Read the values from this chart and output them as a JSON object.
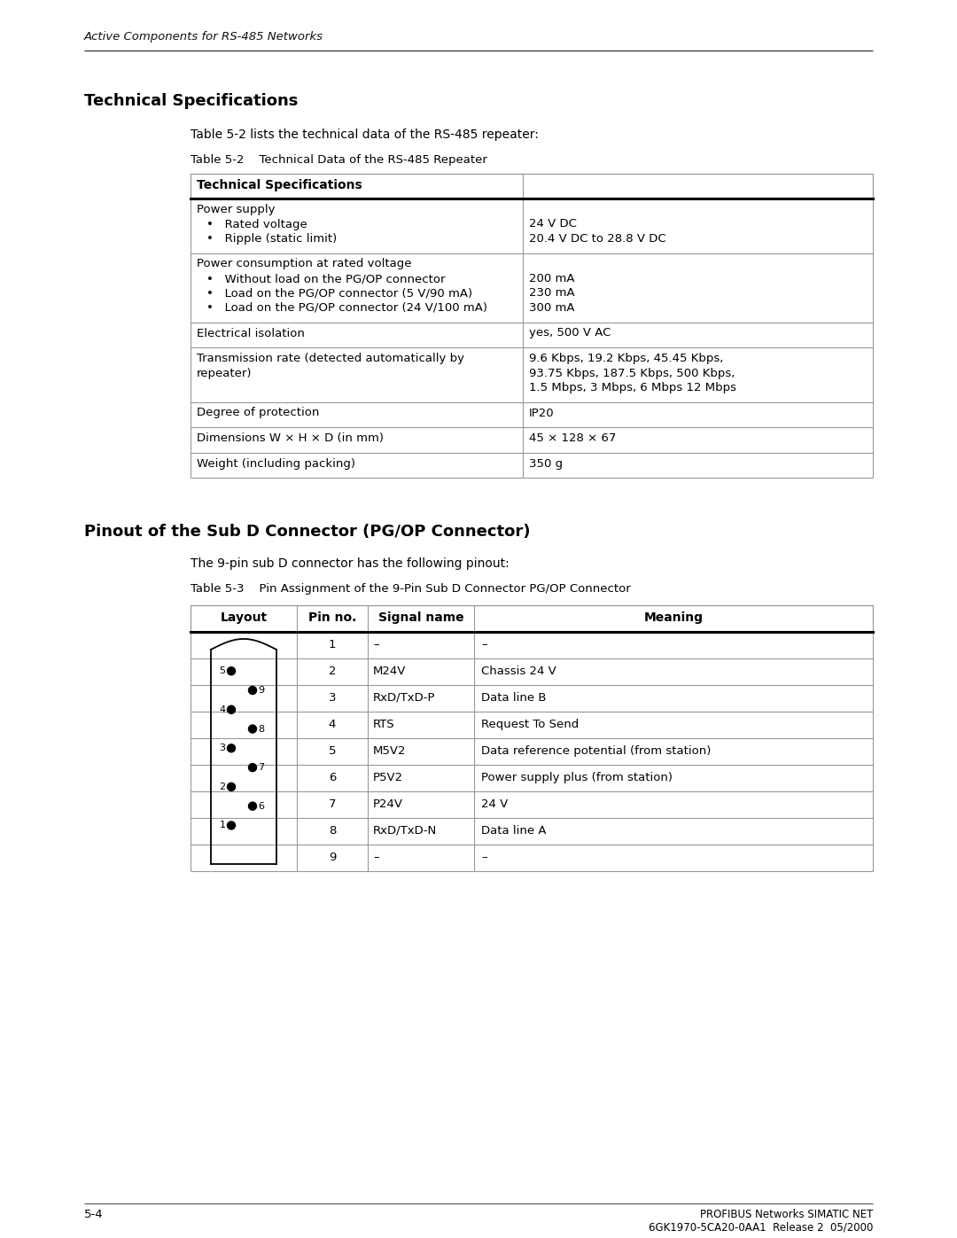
{
  "header_italic": "Active Components for RS-485 Networks",
  "page_number": "5-4",
  "footer_right": "PROFIBUS Networks SIMATIC NET\n6GK1970-5CA20-0AA1  Release 2  05/2000",
  "section1_title": "Technical Specifications",
  "section1_intro": "Table 5-2 lists the technical data of the RS-485 repeater:",
  "table1_caption": "Table 5-2    Technical Data of the RS-485 Repeater",
  "table1_header": "Technical Specifications",
  "table1_rows": [
    {
      "col1_lines": [
        "Power supply",
        "•   Rated voltage",
        "•   Ripple (static limit)"
      ],
      "col2_lines": [
        "",
        "24 V DC",
        "20.4 V DC to 28.8 V DC"
      ]
    },
    {
      "col1_lines": [
        "Power consumption at rated voltage",
        "•   Without load on the PG/OP connector",
        "•   Load on the PG/OP connector (5 V/90 mA)",
        "•   Load on the PG/OP connector (24 V/100 mA)"
      ],
      "col2_lines": [
        "",
        "200 mA",
        "230 mA",
        "300 mA"
      ]
    },
    {
      "col1_lines": [
        "Electrical isolation"
      ],
      "col2_lines": [
        "yes, 500 V AC"
      ]
    },
    {
      "col1_lines": [
        "Transmission rate (detected automatically by",
        "repeater)"
      ],
      "col2_lines": [
        "9.6 Kbps, 19.2 Kbps, 45.45 Kbps,",
        "93.75 Kbps, 187.5 Kbps, 500 Kbps,",
        "1.5 Mbps, 3 Mbps, 6 Mbps 12 Mbps"
      ]
    },
    {
      "col1_lines": [
        "Degree of protection"
      ],
      "col2_lines": [
        "IP20"
      ]
    },
    {
      "col1_lines": [
        "Dimensions W × H × D (in mm)"
      ],
      "col2_lines": [
        "45 × 128 × 67"
      ]
    },
    {
      "col1_lines": [
        "Weight (including packing)"
      ],
      "col2_lines": [
        "350 g"
      ]
    }
  ],
  "section2_title": "Pinout of the Sub D Connector (PG/OP Connector)",
  "section2_intro": "The 9-pin sub D connector has the following pinout:",
  "table2_caption": "Table 5-3    Pin Assignment of the 9-Pin Sub D Connector PG/OP Connector",
  "table2_headers": [
    "Layout",
    "Pin no.",
    "Signal name",
    "Meaning"
  ],
  "table2_rows": [
    [
      "1",
      "–",
      "–"
    ],
    [
      "2",
      "M24V",
      "Chassis 24 V"
    ],
    [
      "3",
      "RxD/TxD-P",
      "Data line B"
    ],
    [
      "4",
      "RTS",
      "Request To Send"
    ],
    [
      "5",
      "M5V2",
      "Data reference potential (from station)"
    ],
    [
      "6",
      "P5V2",
      "Power supply plus (from station)"
    ],
    [
      "7",
      "P24V",
      "24 V"
    ],
    [
      "8",
      "RxD/TxD-N",
      "Data line A"
    ],
    [
      "9",
      "–",
      "–"
    ]
  ]
}
